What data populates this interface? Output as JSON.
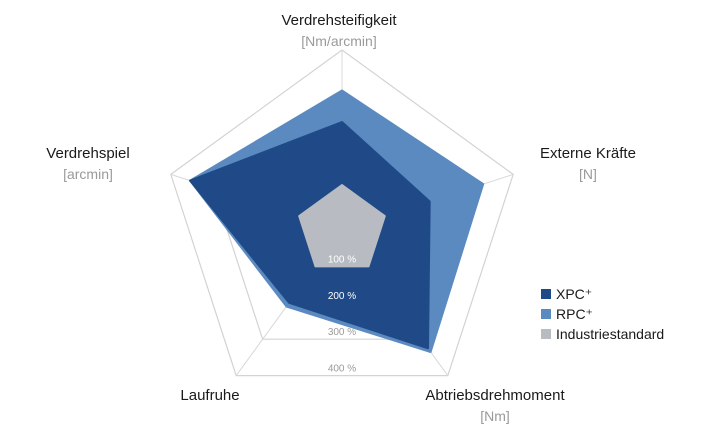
{
  "chart_data": {
    "type": "radar",
    "axes": [
      {
        "name": "Verdrehsteifigkeit",
        "unit": "[Nm/arcmin]"
      },
      {
        "name": "Externe Kräfte",
        "unit": "[N]"
      },
      {
        "name": "Abtriebsdrehmoment",
        "unit": "[Nm]"
      },
      {
        "name": "Laufruhe",
        "unit": ""
      },
      {
        "name": "Verdrehspiel",
        "unit": "[arcmin]"
      }
    ],
    "rings": [
      "100 %",
      "200 %",
      "300 %",
      "400 %"
    ],
    "ring_values": [
      100,
      200,
      300,
      400
    ],
    "series": [
      {
        "name": "RPC⁺",
        "color": "#5b8ac0",
        "values": [
          310,
          330,
          335,
          210,
          355
        ]
      },
      {
        "name": "XPC⁺",
        "color": "#1f4a87",
        "values": [
          240,
          205,
          325,
          200,
          355
        ]
      },
      {
        "name": "Industriestandard",
        "color": "#b8bcc2",
        "values": [
          100,
          100,
          100,
          100,
          100
        ]
      }
    ],
    "legend_position": "right"
  }
}
